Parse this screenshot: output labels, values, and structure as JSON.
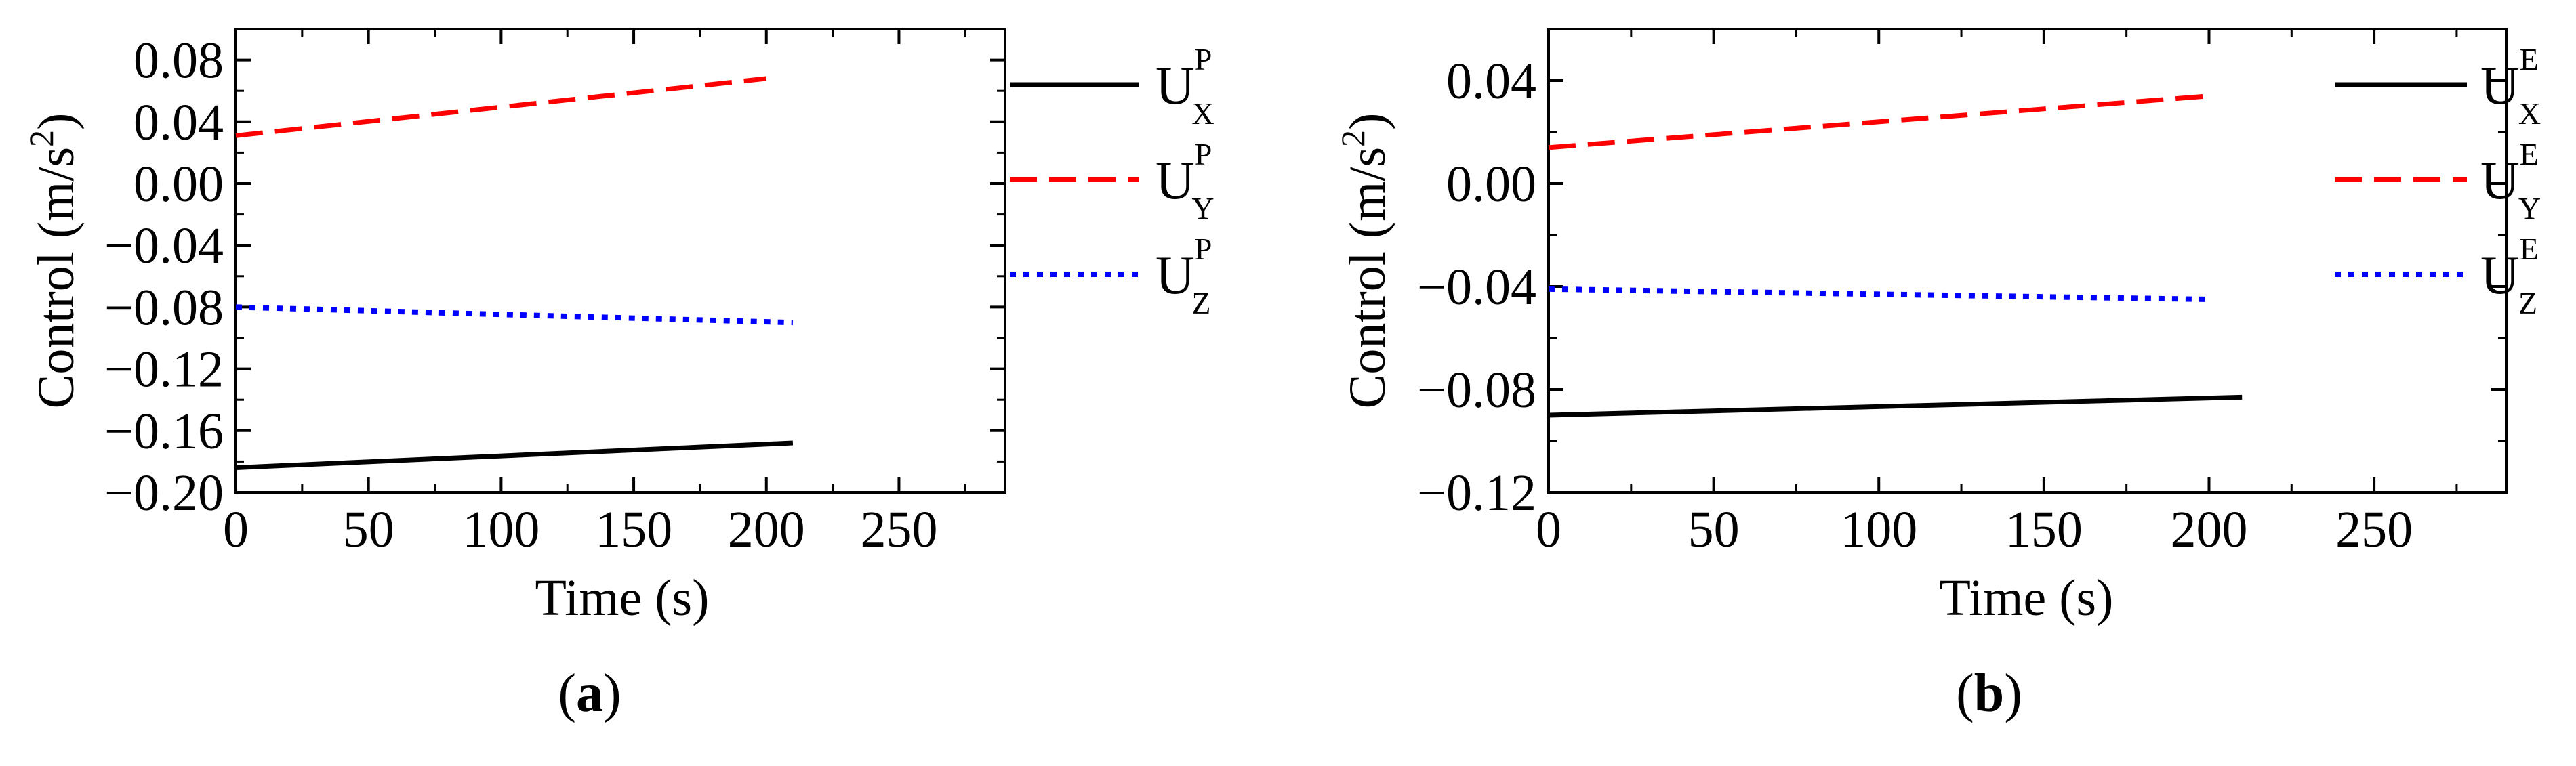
{
  "chart_data": [
    {
      "type": "line",
      "panel_label": "a",
      "xlabel": "Time (s)",
      "ylabel_main": "Control (m/s",
      "ylabel_sup": "2",
      "ylabel_close": ")",
      "xlim": [
        0,
        290
      ],
      "ylim": [
        -0.2,
        0.1
      ],
      "xticks": [
        0,
        50,
        100,
        150,
        200,
        250
      ],
      "xtick_labels": [
        "0",
        "50",
        "100",
        "150",
        "200",
        "250"
      ],
      "yticks": [
        0.08,
        0.04,
        0.0,
        -0.04,
        -0.08,
        -0.12,
        -0.16,
        -0.2
      ],
      "ytick_labels": [
        "0.08",
        "0.04",
        "0.00",
        "−0.04",
        "−0.08",
        "−0.12",
        "−0.16",
        "−0.20"
      ],
      "legend_position": "top-right",
      "series": [
        {
          "name": "U",
          "sup": "P",
          "sub": "X",
          "color": "#000000",
          "style": "solid",
          "x": [
            0,
            210
          ],
          "y": [
            -0.184,
            -0.168
          ]
        },
        {
          "name": "U",
          "sup": "P",
          "sub": "Y",
          "color": "#ff0000",
          "style": "dashed",
          "x": [
            0,
            200
          ],
          "y": [
            0.031,
            0.068
          ]
        },
        {
          "name": "U",
          "sup": "P",
          "sub": "Z",
          "color": "#0000ff",
          "style": "dotted",
          "x": [
            0,
            210
          ],
          "y": [
            -0.08,
            -0.09
          ]
        }
      ]
    },
    {
      "type": "line",
      "panel_label": "b",
      "xlabel": "Time (s)",
      "ylabel_main": "Control (m/s",
      "ylabel_sup": "2",
      "ylabel_close": ")",
      "xlim": [
        0,
        290
      ],
      "ylim": [
        -0.12,
        0.06
      ],
      "xticks": [
        0,
        50,
        100,
        150,
        200,
        250
      ],
      "xtick_labels": [
        "0",
        "50",
        "100",
        "150",
        "200",
        "250"
      ],
      "yticks": [
        0.04,
        0.0,
        -0.04,
        -0.08,
        -0.12
      ],
      "ytick_labels": [
        "0.04",
        "0.00",
        "−0.04",
        "−0.08",
        "−0.12"
      ],
      "legend_position": "top-right",
      "series": [
        {
          "name": "U",
          "sup": "E",
          "sub": "X",
          "color": "#000000",
          "style": "solid",
          "x": [
            0,
            210
          ],
          "y": [
            -0.09,
            -0.083
          ]
        },
        {
          "name": "U",
          "sup": "E",
          "sub": "Y",
          "color": "#ff0000",
          "style": "dashed",
          "x": [
            0,
            200
          ],
          "y": [
            0.014,
            0.034
          ]
        },
        {
          "name": "U",
          "sup": "E",
          "sub": "Z",
          "color": "#0000ff",
          "style": "dotted",
          "x": [
            0,
            200
          ],
          "y": [
            -0.041,
            -0.045
          ]
        }
      ]
    }
  ]
}
